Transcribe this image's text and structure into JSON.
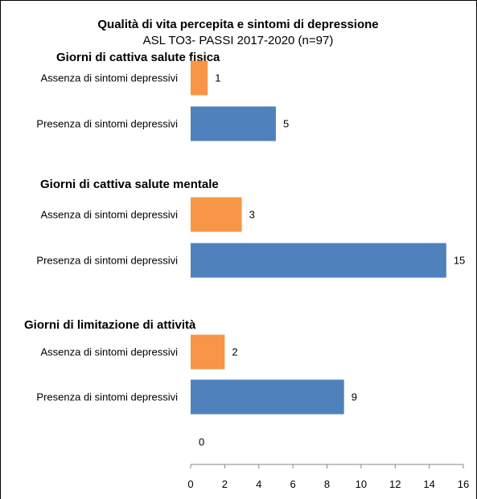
{
  "chart_data": {
    "type": "bar",
    "orientation": "horizontal",
    "title": "Qualità di vita percepita e sintomi di depressione",
    "subtitle": "ASL TO3- PASSI 2017-2020  (n=97)",
    "xlim": [
      0,
      16
    ],
    "x_ticks": [
      "0",
      "2",
      "4",
      "6",
      "8",
      "10",
      "12",
      "14",
      "16"
    ],
    "grid": false,
    "colors": {
      "assenza": "#F79646",
      "presenza": "#4F81BD"
    },
    "groups": [
      {
        "label": "Giorni di cattiva salute fisica",
        "bars": [
          {
            "category": "Assenza di sintomi depressivi",
            "value": 1,
            "value_label": "1",
            "color_key": "assenza"
          },
          {
            "category": "Presenza di sintomi depressivi",
            "value": 5,
            "value_label": "5",
            "color_key": "presenza"
          }
        ]
      },
      {
        "label": "Giorni di cattiva salute mentale",
        "bars": [
          {
            "category": "Assenza di sintomi depressivi",
            "value": 3,
            "value_label": "3",
            "color_key": "assenza"
          },
          {
            "category": "Presenza di sintomi depressivi",
            "value": 15,
            "value_label": "15",
            "color_key": "presenza"
          }
        ]
      },
      {
        "label": "Giorni di limitazione di attività",
        "bars": [
          {
            "category": "Assenza di sintomi depressivi",
            "value": 2,
            "value_label": "2",
            "color_key": "assenza"
          },
          {
            "category": "Presenza di sintomi depressivi",
            "value": 9,
            "value_label": "9",
            "color_key": "presenza"
          }
        ]
      },
      {
        "label": "",
        "bars": [
          {
            "category": "",
            "value": 0,
            "value_label": "0",
            "color_key": "presenza"
          }
        ]
      }
    ]
  }
}
